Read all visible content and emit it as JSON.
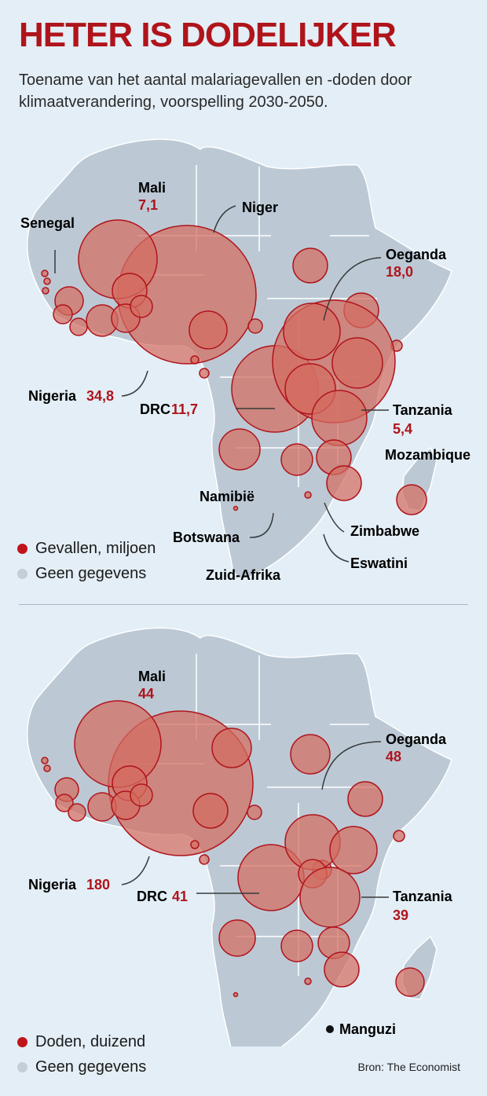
{
  "title": "HETER IS DODELIJKER",
  "subtitle": "Toename van het aantal malariagevallen en -doden door klimaatverandering, voorspelling 2030-2050.",
  "colors": {
    "accent": "#b0141b",
    "bubble_fill": "#d46c60",
    "land": "#bcc9d5",
    "no_data": "#c4ced7",
    "water": "#e3eef6"
  },
  "map1": {
    "legend_metric": "Gevallen, miljoen",
    "legend_no_data": "Geen gegevens",
    "labels": {
      "mali": "Mali",
      "mali_value": "7,1",
      "niger": "Niger",
      "senegal": "Senegal",
      "oeganda": "Oeganda",
      "oeganda_value": "18,0",
      "nigeria": "Nigeria",
      "nigeria_value": "34,8",
      "drc": "DRC",
      "drc_value": "11,7",
      "tanzania": "Tanzania",
      "tanzania_value": "5,4",
      "mozambique": "Mozambique",
      "namibie": "Namibië",
      "botswana": "Botswana",
      "zimbabwe": "Zimbabwe",
      "eswatini": "Eswatini",
      "zuid_afrika": "Zuid-Afrika"
    }
  },
  "map2": {
    "legend_metric": "Doden, duizend",
    "legend_no_data": "Geen gegevens",
    "labels": {
      "mali": "Mali",
      "mali_value": "44",
      "oeganda": "Oeganda",
      "oeganda_value": "48",
      "nigeria": "Nigeria",
      "nigeria_value": "180",
      "drc": "DRC",
      "drc_value": "41",
      "tanzania": "Tanzania",
      "tanzania_value": "39",
      "manguzi": "Manguzi"
    }
  },
  "source": "Bron: The Economist"
}
